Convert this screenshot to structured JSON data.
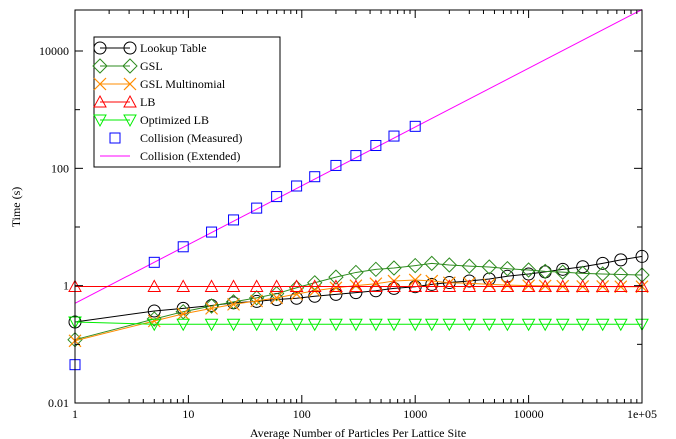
{
  "chart_data": {
    "type": "line",
    "title": "",
    "xlabel": "Average Number of Particles Per Lattice Site",
    "ylabel": "Time (s)",
    "xscale": "log",
    "yscale": "log",
    "xlim": [
      1,
      100000
    ],
    "ylim": [
      0.01,
      50000
    ],
    "x_ticks": [
      1,
      10,
      100,
      1000,
      10000,
      100000
    ],
    "x_tick_labels": [
      "1",
      "10",
      "100",
      "1000",
      "10000",
      "1e+05"
    ],
    "y_ticks": [
      0.01,
      1,
      100,
      10000
    ],
    "y_tick_labels": [
      "0.01",
      "1",
      "100",
      "10000"
    ],
    "legend_position": "top-left",
    "series": [
      {
        "name": "Lookup Table",
        "marker": "circle",
        "color": "#000000",
        "line": true,
        "x": [
          1,
          5,
          9,
          16,
          25,
          40,
          60,
          90,
          130,
          200,
          300,
          450,
          650,
          1000,
          1400,
          2000,
          3000,
          4500,
          6500,
          10000,
          14000,
          20000,
          30000,
          45000,
          65000,
          100000
        ],
        "y": [
          0.24,
          0.37,
          0.41,
          0.46,
          0.51,
          0.54,
          0.58,
          0.61,
          0.66,
          0.71,
          0.76,
          0.82,
          0.9,
          0.96,
          1.05,
          1.13,
          1.2,
          1.3,
          1.45,
          1.58,
          1.72,
          1.9,
          2.1,
          2.4,
          2.75,
          3.15
        ]
      },
      {
        "name": "GSL",
        "marker": "diamond",
        "color": "#2e8b1f",
        "line": true,
        "x": [
          1,
          5,
          9,
          16,
          25,
          40,
          60,
          90,
          130,
          200,
          300,
          450,
          650,
          1000,
          1400,
          2000,
          3000,
          4500,
          6500,
          10000,
          14000,
          20000,
          30000,
          45000,
          65000,
          100000
        ],
        "y": [
          0.12,
          0.27,
          0.36,
          0.45,
          0.53,
          0.62,
          0.73,
          0.92,
          1.12,
          1.4,
          1.68,
          1.9,
          2.0,
          2.2,
          2.4,
          2.25,
          2.15,
          2.08,
          1.95,
          1.85,
          1.75,
          1.7,
          1.62,
          1.58,
          1.55,
          1.52
        ]
      },
      {
        "name": "GSL Multinomial",
        "marker": "x",
        "color": "#ff8c00",
        "line": true,
        "x": [
          1,
          5,
          9,
          16,
          25,
          40,
          60,
          90,
          130,
          200,
          300,
          450,
          650,
          1000,
          1400,
          2000,
          3000,
          4500,
          6500,
          10000,
          14000,
          20000,
          30000,
          45000,
          65000,
          100000
        ],
        "y": [
          0.115,
          0.25,
          0.33,
          0.41,
          0.48,
          0.55,
          0.62,
          0.72,
          0.82,
          0.92,
          1.0,
          1.08,
          1.2,
          1.25,
          1.2,
          1.12,
          1.1,
          1.05,
          1.02,
          1.0,
          0.99,
          0.98,
          0.97,
          0.97,
          0.96,
          0.96
        ]
      },
      {
        "name": "LB",
        "marker": "triangle-up",
        "color": "#ff0000",
        "line": true,
        "x": [
          1,
          5,
          9,
          16,
          25,
          40,
          60,
          90,
          130,
          200,
          300,
          450,
          650,
          1000,
          1400,
          2000,
          3000,
          4500,
          6500,
          10000,
          14000,
          20000,
          30000,
          45000,
          65000,
          100000
        ],
        "y": [
          0.97,
          0.97,
          0.97,
          0.97,
          0.97,
          0.97,
          0.97,
          0.97,
          0.97,
          0.97,
          0.97,
          0.97,
          0.97,
          0.97,
          0.97,
          0.97,
          0.97,
          0.97,
          0.97,
          0.97,
          0.97,
          0.97,
          0.97,
          0.97,
          0.97,
          0.97
        ]
      },
      {
        "name": "Optimized LB",
        "marker": "triangle-down",
        "color": "#00ee00",
        "line": true,
        "x": [
          1,
          5,
          9,
          16,
          25,
          40,
          60,
          90,
          130,
          200,
          300,
          450,
          650,
          1000,
          1400,
          2000,
          3000,
          4500,
          6500,
          10000,
          14000,
          20000,
          30000,
          45000,
          65000,
          100000
        ],
        "y": [
          0.24,
          0.22,
          0.22,
          0.22,
          0.22,
          0.22,
          0.22,
          0.22,
          0.22,
          0.22,
          0.22,
          0.22,
          0.22,
          0.22,
          0.22,
          0.22,
          0.22,
          0.22,
          0.22,
          0.22,
          0.22,
          0.22,
          0.22,
          0.22,
          0.22,
          0.22
        ]
      },
      {
        "name": "Collision (Measured)",
        "marker": "square",
        "color": "#0000ff",
        "line": false,
        "x": [
          1,
          5,
          9,
          16,
          25,
          40,
          60,
          90,
          130,
          200,
          300,
          450,
          650,
          1000
        ],
        "y": [
          0.045,
          2.5,
          4.6,
          8.2,
          13.2,
          21,
          33,
          50,
          72,
          112,
          165,
          245,
          355,
          520
        ]
      },
      {
        "name": "Collision (Extended)",
        "marker": "none",
        "color": "#ff00ff",
        "line": true,
        "x": [
          1,
          100000
        ],
        "y": [
          0.5,
          51000
        ]
      }
    ]
  }
}
